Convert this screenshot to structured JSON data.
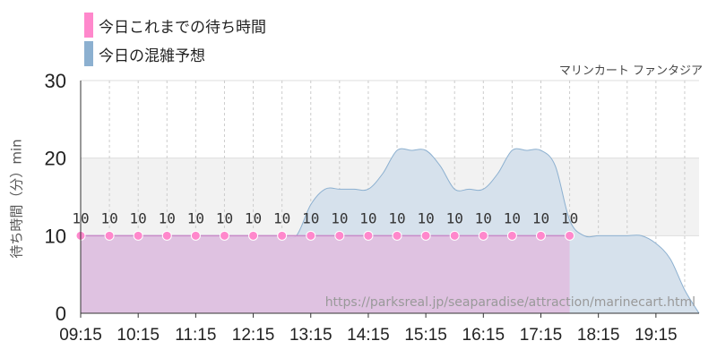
{
  "chart_data": {
    "type": "area",
    "title": "",
    "subtitle": "マリンカート ファンタジア",
    "ylabel": "待ち時間（分）min",
    "xlabel": "",
    "ylim": [
      0,
      30
    ],
    "yticks": [
      "0",
      "10",
      "20",
      "30"
    ],
    "x_ticks": [
      "09:15",
      "10:15",
      "11:15",
      "12:15",
      "13:15",
      "14:15",
      "15:15",
      "16:15",
      "17:15",
      "18:15",
      "19:15"
    ],
    "x_minor": [
      "09:45",
      "10:45",
      "11:45",
      "12:45",
      "13:45",
      "14:45",
      "15:45",
      "16:45",
      "17:45",
      "18:45",
      "19:45"
    ],
    "grid": true,
    "shaded_band": [
      10,
      20
    ],
    "legend_position": "top-left",
    "series": [
      {
        "name": "今日これまでの待ち時間",
        "color": "#ff88cc",
        "fill": "#e0bfe0",
        "x": [
          "09:15",
          "09:45",
          "10:15",
          "10:45",
          "11:15",
          "11:45",
          "12:15",
          "12:45",
          "13:15",
          "13:45",
          "14:15",
          "14:45",
          "15:15",
          "15:45",
          "16:15",
          "16:45",
          "17:15",
          "17:45"
        ],
        "values": [
          10,
          10,
          10,
          10,
          10,
          10,
          10,
          10,
          10,
          10,
          10,
          10,
          10,
          10,
          10,
          10,
          10,
          10
        ],
        "data_labels": [
          "10",
          "10",
          "10",
          "10",
          "10",
          "10",
          "10",
          "10",
          "10",
          "10",
          "10",
          "10",
          "10",
          "10",
          "10",
          "10",
          "10",
          "10"
        ]
      },
      {
        "name": "今日の混雑予想",
        "color": "#8cb0d0",
        "fill": "#d6e1ec",
        "x": [
          "09:15",
          "09:30",
          "09:45",
          "10:00",
          "10:15",
          "10:30",
          "10:45",
          "11:00",
          "11:15",
          "11:30",
          "11:45",
          "12:00",
          "12:15",
          "12:30",
          "12:45",
          "13:00",
          "13:15",
          "13:30",
          "13:45",
          "14:00",
          "14:15",
          "14:30",
          "14:45",
          "15:00",
          "15:15",
          "15:30",
          "15:45",
          "16:00",
          "16:15",
          "16:30",
          "16:45",
          "17:00",
          "17:15",
          "17:30",
          "17:45",
          "18:00",
          "18:15",
          "18:30",
          "18:45",
          "19:00",
          "19:15",
          "19:30",
          "19:45",
          "20:00"
        ],
        "values": [
          10,
          10,
          10,
          10,
          10,
          10,
          10,
          10,
          10,
          10,
          10,
          10,
          10,
          10,
          10,
          10,
          14,
          16,
          16,
          16,
          16,
          18,
          21,
          21,
          21,
          19,
          16,
          16,
          16,
          18,
          21,
          21,
          21,
          19,
          12,
          10,
          10,
          10,
          10,
          10,
          9,
          7,
          3,
          0
        ]
      }
    ]
  },
  "watermark": "https://parksreal.jp/seaparadise/attraction/marinecart.html"
}
